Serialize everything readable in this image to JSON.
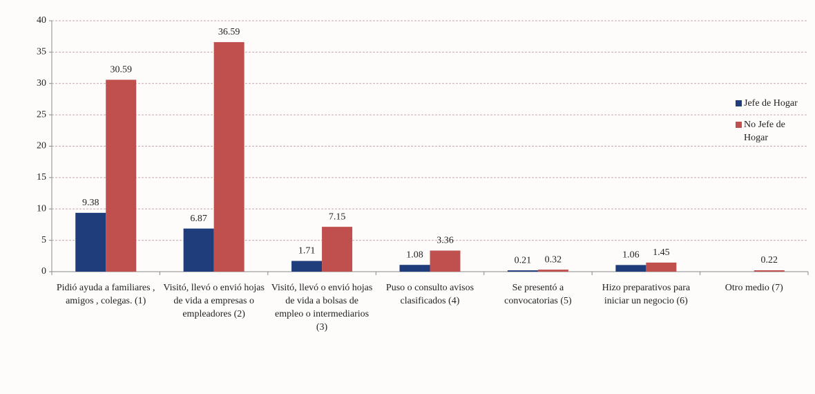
{
  "chart_data": {
    "type": "bar",
    "categories": [
      "Pidió ayuda a familiares , amigos , colegas. (1)",
      "Visitó, llevó o envió hojas de vida a empresas o empleadores (2)",
      "Visitó, llevó o envió hojas de vida a bolsas de empleo o intermediarios (3)",
      "Puso o consulto avisos clasificados (4)",
      "Se presentó a convocatorias (5)",
      "Hizo preparativos para iniciar un negocio (6)",
      "Otro medio (7)"
    ],
    "series": [
      {
        "name": "Jefe de Hogar",
        "color": "#1f3d7a",
        "values": [
          9.38,
          6.87,
          1.71,
          1.08,
          0.21,
          1.06,
          null
        ]
      },
      {
        "name": "No Jefe de Hogar",
        "color": "#c0504d",
        "values": [
          30.59,
          36.59,
          7.15,
          3.36,
          0.32,
          1.45,
          0.22
        ]
      }
    ],
    "ylim": [
      0,
      40
    ],
    "yticks": [
      0,
      5,
      10,
      15,
      20,
      25,
      30,
      35,
      40
    ],
    "grid": true,
    "legend": "right"
  }
}
